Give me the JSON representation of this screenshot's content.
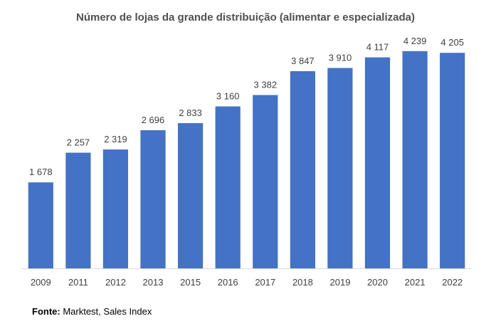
{
  "chart_data": {
    "type": "bar",
    "title": "Número de lojas da grande distribuição (alimentar e especializada)",
    "categories": [
      "2009",
      "2011",
      "2012",
      "2013",
      "2015",
      "2016",
      "2017",
      "2018",
      "2019",
      "2020",
      "2021",
      "2022"
    ],
    "values": [
      1678,
      2257,
      2319,
      2696,
      2833,
      3160,
      3382,
      3847,
      3910,
      4117,
      4239,
      4205
    ],
    "value_labels": [
      "1 678",
      "2 257",
      "2 319",
      "2 696",
      "2 833",
      "3 160",
      "3 382",
      "3 847",
      "3 910",
      "4 117",
      "4 239",
      "4 205"
    ],
    "xlabel": "",
    "ylabel": "",
    "ylim": [
      0,
      4500
    ],
    "grid": false,
    "legend": "none",
    "bar_color": "#4472C4"
  },
  "source": {
    "label": "Fonte:",
    "text": " Marktest, Sales Index"
  }
}
